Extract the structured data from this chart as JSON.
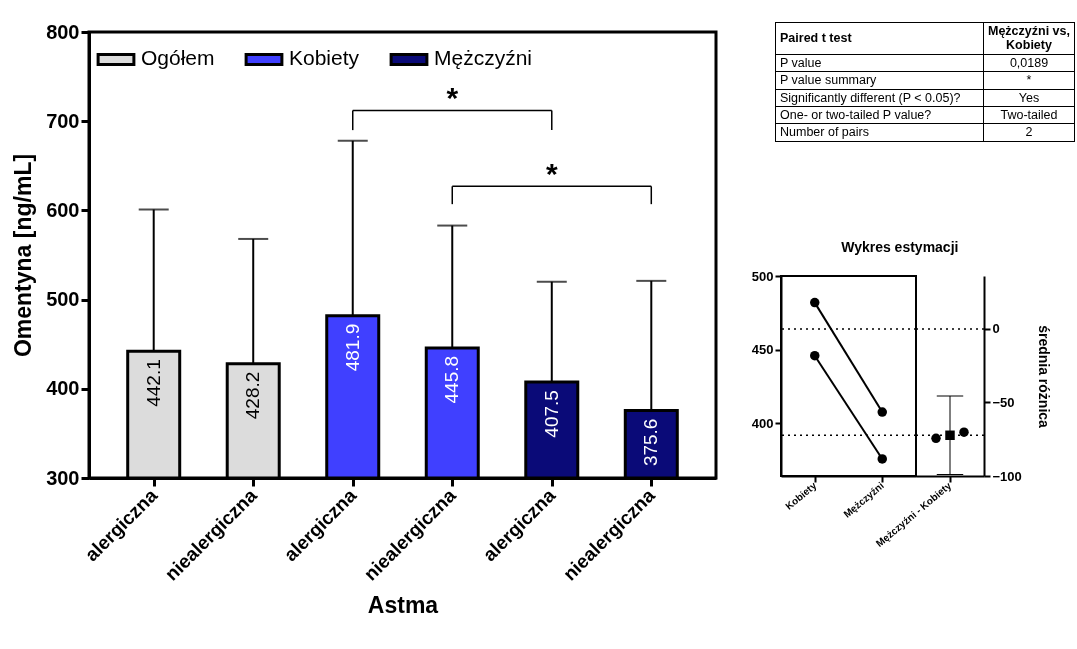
{
  "chart_data": [
    {
      "type": "bar",
      "categories": [
        "alergiczna",
        "niealergiczna",
        "alergiczna",
        "niealergiczna",
        "alergiczna",
        "niealergiczna"
      ],
      "xlabel": "Astma",
      "ylabel": "Omentyna [ng/mL]",
      "ylim": [
        300,
        800
      ],
      "yticks": [
        300,
        400,
        500,
        600,
        700,
        800
      ],
      "data_labels": true,
      "legend": "top left",
      "annotations": [
        "*",
        "*"
      ],
      "series": [
        {
          "name": "Ogółem",
          "color": "#dcdcdc",
          "values": [
            442.1,
            428.2,
            null,
            null,
            null,
            null
          ],
          "errors": [
            [
              442.1,
              601
            ],
            [
              428.2,
              568
            ],
            null,
            null,
            null,
            null
          ]
        },
        {
          "name": "Kobiety",
          "color": "#4040ff",
          "values": [
            null,
            null,
            481.9,
            445.8,
            null,
            null
          ],
          "errors": [
            null,
            null,
            [
              481.9,
              678
            ],
            [
              445.8,
              583
            ],
            null,
            null
          ]
        },
        {
          "name": "Mężczyźni",
          "color": "#0a0a78",
          "values": [
            null,
            null,
            null,
            null,
            407.5,
            375.6
          ],
          "errors": [
            null,
            null,
            null,
            null,
            [
              407.5,
              520
            ],
            [
              375.6,
              521
            ]
          ]
        }
      ]
    },
    {
      "type": "other",
      "annotations": [
        "Paired t test",
        "Mężczyźni vs, Kobiety",
        "P value",
        "0,0189",
        "P value summary",
        "*",
        "Significantly different (P < 0.05)?",
        "Yes",
        "One- or two-tailed P value?",
        "Two-tailed",
        "Number of pairs",
        "2"
      ]
    },
    {
      "type": "line",
      "title": "Wykres estymacji",
      "categories": [
        "Kobiety",
        "Mężczyźni",
        "Mężczyźni - Kobiety"
      ],
      "y2label": "średnia różnica",
      "ylim": [
        364,
        500
      ],
      "yticks": [
        400,
        450,
        500
      ],
      "y2lim": [
        -100,
        36
      ],
      "y2ticks": [
        -100,
        -50,
        0
      ],
      "marker": "circle",
      "series": [
        {
          "color": "#000000",
          "values": [
            481.9,
            407.5,
            null
          ]
        },
        {
          "color": "#000000",
          "values": [
            445.8,
            375.6,
            null
          ]
        },
        {
          "type": "scatter",
          "axis": "y2",
          "color": "#000000",
          "values": [
            null,
            null,
            -74.4
          ]
        },
        {
          "type": "scatter",
          "axis": "y2",
          "marker": "square",
          "color": "#000000",
          "values": [
            null,
            null,
            -72.3
          ],
          "errors": [
            null,
            null,
            [
              -99,
              -45.6
            ]
          ]
        },
        {
          "type": "scatter",
          "axis": "y2",
          "color": "#000000",
          "values": [
            null,
            null,
            -70.2
          ]
        }
      ],
      "ref_lines": [
        {
          "axis": "y2",
          "value": 0,
          "line_style": "dotted"
        },
        {
          "axis": "y2",
          "value": -72.3,
          "line_style": "dotted"
        }
      ]
    }
  ]
}
